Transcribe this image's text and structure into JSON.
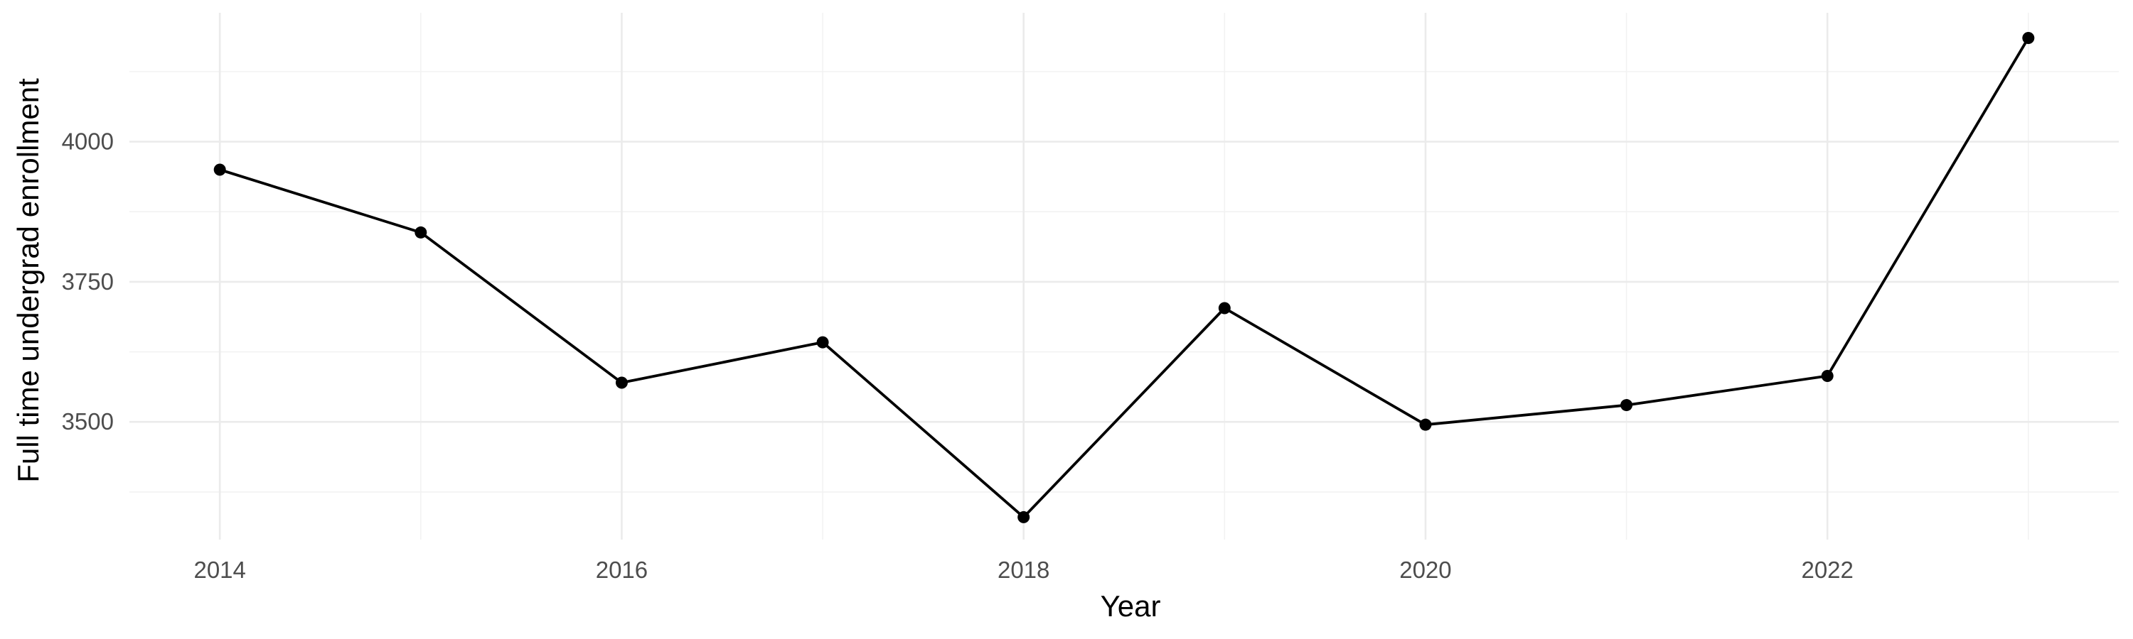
{
  "chart_data": {
    "type": "line",
    "title": "",
    "xlabel": "Year",
    "ylabel": "Full time undergrad enrollment",
    "x": [
      2014,
      2015,
      2016,
      2017,
      2018,
      2019,
      2020,
      2021,
      2022,
      2023
    ],
    "series": [
      {
        "name": "",
        "values": [
          3950,
          3838,
          3570,
          3642,
          3330,
          3703,
          3495,
          3530,
          3582,
          4185
        ]
      }
    ],
    "xlim": [
      2013.55,
      2023.45
    ],
    "ylim": [
      3290,
      4230
    ],
    "x_ticks": [
      2014,
      2016,
      2018,
      2020,
      2022
    ],
    "x_tick_labels": [
      "2014",
      "2016",
      "2018",
      "2020",
      "2022"
    ],
    "y_ticks": [
      3500,
      3750,
      4000
    ],
    "y_tick_labels": [
      "3500",
      "3750",
      "4000"
    ],
    "grid": true,
    "legend": "none",
    "colors": {
      "line": "#000000",
      "point": "#000000",
      "grid": "#ebebeb",
      "background": "#ffffff"
    }
  }
}
